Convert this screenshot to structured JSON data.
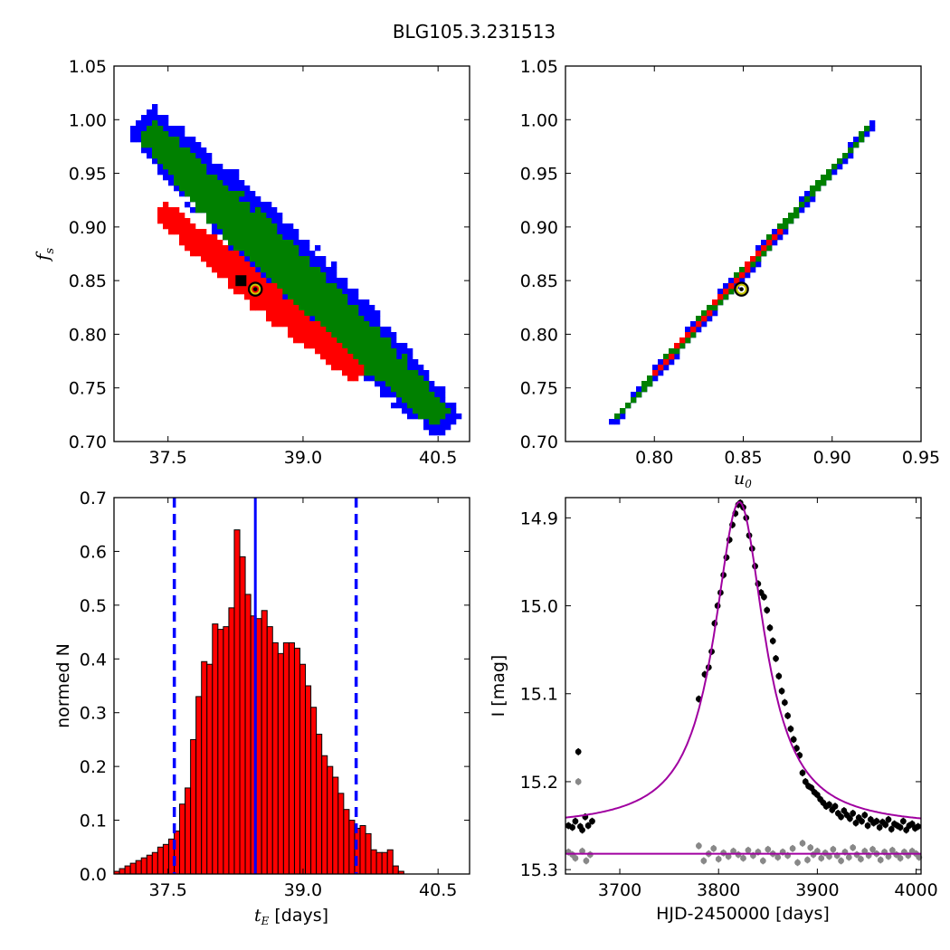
{
  "figure": {
    "title": "BLG105.3.231513"
  },
  "colors": {
    "sigma1": "#ff0000",
    "sigma2": "#008000",
    "sigma3": "#0000ff",
    "best_marker": "#c8c800",
    "histogram_bar": "#ff0000",
    "median_line": "#0000ff",
    "model_curve": "#a000a0",
    "residual_points": "#888888",
    "data_points": "#000000"
  },
  "chart_data": [
    {
      "id": "fs_vs_tE",
      "type": "heatmap",
      "title": "",
      "xlabel": "",
      "ylabel": "f_s",
      "ylabel_sub": "s",
      "xlim": [
        36.9,
        40.85
      ],
      "ylim": [
        0.7,
        1.05
      ],
      "xticks": [
        37.5,
        39.0,
        40.5
      ],
      "xtick_labels": [
        "37.5",
        "39.0",
        "40.5"
      ],
      "yticks": [
        0.7,
        0.75,
        0.8,
        0.85,
        0.9,
        0.95,
        1.0,
        1.05
      ],
      "ytick_labels": [
        "0.70",
        "0.75",
        "0.80",
        "0.85",
        "0.90",
        "0.95",
        "1.00",
        "1.05"
      ],
      "regions": {
        "sigma3": {
          "x0": 37.2,
          "y0": 1.0,
          "x1": 40.65,
          "y1": 0.713,
          "halfwidth": 0.34
        },
        "sigma2": {
          "x0": 37.25,
          "y0": 0.99,
          "x1": 40.55,
          "y1": 0.72,
          "halfwidth": 0.24
        },
        "sigma1": {
          "x0": 37.4,
          "y0": 0.917,
          "x1": 39.65,
          "y1": 0.76,
          "halfwidth": 0.17
        }
      },
      "best_fit": {
        "x": 38.47,
        "y": 0.842
      }
    },
    {
      "id": "fs_vs_u0",
      "type": "heatmap",
      "title": "",
      "xlabel": "u_0",
      "xlabel_sub": "0",
      "ylabel": "",
      "xlim": [
        0.75,
        0.95
      ],
      "ylim": [
        0.7,
        1.05
      ],
      "xticks": [
        0.8,
        0.85,
        0.9,
        0.95
      ],
      "xtick_labels": [
        "0.80",
        "0.85",
        "0.90",
        "0.95"
      ],
      "yticks": [
        0.7,
        0.75,
        0.8,
        0.85,
        0.9,
        0.95,
        1.0,
        1.05
      ],
      "ytick_labels": [
        "0.70",
        "0.75",
        "0.80",
        "0.85",
        "0.90",
        "0.95",
        "1.00",
        "1.05"
      ],
      "regions": {
        "sigma3": {
          "x0": 0.776,
          "y0": 0.716,
          "x1": 0.925,
          "y1": 1.0,
          "halfwidth": 0.0032
        },
        "sigma2": {
          "x0": 0.778,
          "y0": 0.72,
          "x1": 0.922,
          "y1": 0.995,
          "halfwidth": 0.0021
        },
        "sigma1": {
          "x0": 0.8,
          "y0": 0.763,
          "x1": 0.88,
          "y1": 0.915,
          "halfwidth": 0.0012
        }
      },
      "best_fit": {
        "x": 0.849,
        "y": 0.842
      }
    },
    {
      "id": "tE_histogram",
      "type": "bar",
      "title": "",
      "xlabel": "t_E [days]",
      "xlabel_var": "t",
      "xlabel_sub": "E",
      "xlabel_unit": "[days]",
      "ylabel": "normed N",
      "xlim": [
        36.9,
        40.85
      ],
      "ylim": [
        0.0,
        0.7
      ],
      "xticks": [
        37.5,
        39.0,
        40.5
      ],
      "xtick_labels": [
        "37.5",
        "39.0",
        "40.5"
      ],
      "yticks": [
        0.0,
        0.1,
        0.2,
        0.3,
        0.4,
        0.5,
        0.6,
        0.7
      ],
      "ytick_labels": [
        "0.0",
        "0.1",
        "0.2",
        "0.3",
        "0.4",
        "0.5",
        "0.6",
        "0.7"
      ],
      "bin_start": 36.9,
      "bin_width": 0.06075,
      "values": [
        0.005,
        0.01,
        0.015,
        0.02,
        0.025,
        0.03,
        0.035,
        0.04,
        0.05,
        0.055,
        0.065,
        0.08,
        0.13,
        0.16,
        0.25,
        0.33,
        0.395,
        0.39,
        0.465,
        0.455,
        0.46,
        0.495,
        0.64,
        0.59,
        0.52,
        0.48,
        0.475,
        0.49,
        0.46,
        0.43,
        0.41,
        0.43,
        0.43,
        0.42,
        0.39,
        0.35,
        0.31,
        0.26,
        0.22,
        0.2,
        0.18,
        0.15,
        0.12,
        0.1,
        0.085,
        0.09,
        0.075,
        0.045,
        0.04,
        0.04,
        0.045,
        0.015,
        0.005
      ],
      "median": 38.47,
      "percentile_lines": [
        37.57,
        39.59
      ]
    },
    {
      "id": "light_curve",
      "type": "scatter",
      "title": "",
      "xlabel": "HJD-2450000 [days]",
      "ylabel": "I [mag]",
      "xlim": [
        3645,
        4005
      ],
      "ylim": [
        15.305,
        14.877
      ],
      "y_inverted": true,
      "xticks": [
        3700,
        3800,
        3900,
        4000
      ],
      "xtick_labels": [
        "3700",
        "3800",
        "3900",
        "4000"
      ],
      "yticks": [
        14.9,
        15.0,
        15.1,
        15.2,
        15.3
      ],
      "ytick_labels": [
        "14.9",
        "15.0",
        "15.1",
        "15.2",
        "15.3"
      ],
      "model": {
        "t0": 3821,
        "peak_mag": 14.882,
        "base_mag": 15.252,
        "width": 31
      },
      "residual_baseline": 15.282,
      "series": [
        {
          "role": "data",
          "points": [
            [
              3648,
              15.25
            ],
            [
              3652,
              15.252
            ],
            [
              3655,
              15.245
            ],
            [
              3658,
              15.166
            ],
            [
              3660,
              15.251
            ],
            [
              3662,
              15.255
            ],
            [
              3665,
              15.24
            ],
            [
              3668,
              15.25
            ],
            [
              3672,
              15.245
            ],
            [
              3780,
              15.106
            ],
            [
              3786,
              15.078
            ],
            [
              3790,
              15.07
            ],
            [
              3793,
              15.052
            ],
            [
              3796,
              15.02
            ],
            [
              3799,
              15.0
            ],
            [
              3802,
              14.985
            ],
            [
              3805,
              14.965
            ],
            [
              3808,
              14.945
            ],
            [
              3811,
              14.925
            ],
            [
              3814,
              14.908
            ],
            [
              3817,
              14.895
            ],
            [
              3820,
              14.885
            ],
            [
              3822,
              14.883
            ],
            [
              3825,
              14.888
            ],
            [
              3828,
              14.9
            ],
            [
              3831,
              14.92
            ],
            [
              3834,
              14.935
            ],
            [
              3837,
              14.955
            ],
            [
              3840,
              14.975
            ],
            [
              3843,
              14.985
            ],
            [
              3846,
              14.99
            ],
            [
              3849,
              15.005
            ],
            [
              3852,
              15.025
            ],
            [
              3855,
              15.04
            ],
            [
              3858,
              15.06
            ],
            [
              3861,
              15.08
            ],
            [
              3864,
              15.097
            ],
            [
              3867,
              15.11
            ],
            [
              3870,
              15.125
            ],
            [
              3873,
              15.14
            ],
            [
              3876,
              15.152
            ],
            [
              3879,
              15.162
            ],
            [
              3882,
              15.17
            ],
            [
              3885,
              15.19
            ],
            [
              3888,
              15.2
            ],
            [
              3891,
              15.205
            ],
            [
              3894,
              15.207
            ],
            [
              3897,
              15.212
            ],
            [
              3900,
              15.215
            ],
            [
              3903,
              15.22
            ],
            [
              3906,
              15.224
            ],
            [
              3909,
              15.228
            ],
            [
              3912,
              15.226
            ],
            [
              3915,
              15.232
            ],
            [
              3918,
              15.228
            ],
            [
              3921,
              15.236
            ],
            [
              3924,
              15.24
            ],
            [
              3927,
              15.233
            ],
            [
              3930,
              15.238
            ],
            [
              3933,
              15.242
            ],
            [
              3936,
              15.236
            ],
            [
              3939,
              15.247
            ],
            [
              3942,
              15.241
            ],
            [
              3945,
              15.245
            ],
            [
              3948,
              15.238
            ],
            [
              3951,
              15.25
            ],
            [
              3954,
              15.243
            ],
            [
              3957,
              15.247
            ],
            [
              3960,
              15.245
            ],
            [
              3963,
              15.252
            ],
            [
              3966,
              15.246
            ],
            [
              3969,
              15.249
            ],
            [
              3972,
              15.243
            ],
            [
              3975,
              15.254
            ],
            [
              3978,
              15.248
            ],
            [
              3981,
              15.25
            ],
            [
              3984,
              15.252
            ],
            [
              3987,
              15.245
            ],
            [
              3990,
              15.255
            ],
            [
              3993,
              15.25
            ],
            [
              3996,
              15.248
            ],
            [
              3999,
              15.253
            ],
            [
              4002,
              15.251
            ]
          ]
        },
        {
          "role": "residuals",
          "points": [
            [
              3648,
              15.28
            ],
            [
              3652,
              15.283
            ],
            [
              3655,
              15.287
            ],
            [
              3658,
              15.2
            ],
            [
              3662,
              15.279
            ],
            [
              3666,
              15.29
            ],
            [
              3670,
              15.283
            ],
            [
              3780,
              15.273
            ],
            [
              3785,
              15.29
            ],
            [
              3790,
              15.282
            ],
            [
              3795,
              15.276
            ],
            [
              3800,
              15.288
            ],
            [
              3805,
              15.281
            ],
            [
              3810,
              15.285
            ],
            [
              3815,
              15.279
            ],
            [
              3820,
              15.283
            ],
            [
              3825,
              15.287
            ],
            [
              3830,
              15.278
            ],
            [
              3835,
              15.284
            ],
            [
              3840,
              15.28
            ],
            [
              3845,
              15.29
            ],
            [
              3850,
              15.277
            ],
            [
              3855,
              15.282
            ],
            [
              3860,
              15.286
            ],
            [
              3865,
              15.28
            ],
            [
              3870,
              15.284
            ],
            [
              3875,
              15.276
            ],
            [
              3880,
              15.292
            ],
            [
              3885,
              15.27
            ],
            [
              3890,
              15.289
            ],
            [
              3893,
              15.275
            ],
            [
              3896,
              15.283
            ],
            [
              3900,
              15.279
            ],
            [
              3904,
              15.287
            ],
            [
              3908,
              15.281
            ],
            [
              3912,
              15.285
            ],
            [
              3916,
              15.277
            ],
            [
              3920,
              15.284
            ],
            [
              3924,
              15.29
            ],
            [
              3928,
              15.28
            ],
            [
              3932,
              15.286
            ],
            [
              3936,
              15.275
            ],
            [
              3940,
              15.283
            ],
            [
              3944,
              15.288
            ],
            [
              3948,
              15.279
            ],
            [
              3952,
              15.284
            ],
            [
              3956,
              15.277
            ],
            [
              3960,
              15.282
            ],
            [
              3964,
              15.289
            ],
            [
              3968,
              15.28
            ],
            [
              3972,
              15.285
            ],
            [
              3976,
              15.278
            ],
            [
              3980,
              15.283
            ],
            [
              3984,
              15.287
            ],
            [
              3988,
              15.28
            ],
            [
              3992,
              15.284
            ],
            [
              3996,
              15.279
            ],
            [
              4000,
              15.282
            ],
            [
              4003,
              15.286
            ]
          ]
        }
      ]
    }
  ]
}
